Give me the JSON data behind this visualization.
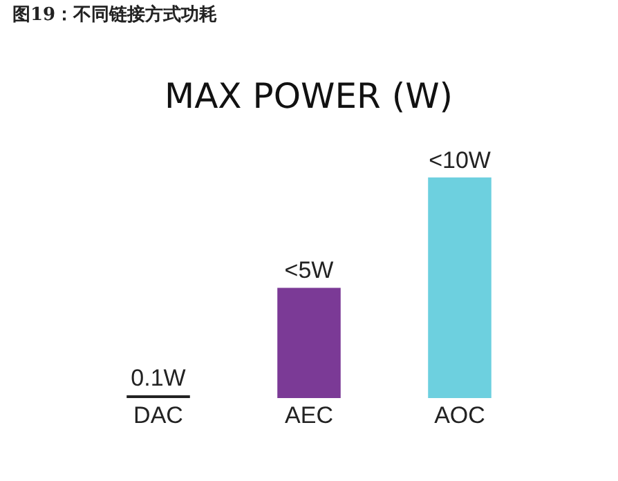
{
  "chart_data": {
    "type": "bar",
    "title": "图19：不同链接方式功耗",
    "subtitle": "MAX POWER (W)",
    "categories": [
      "DAC",
      "AEC",
      "AOC"
    ],
    "values": [
      0.1,
      5,
      10
    ],
    "colors": [
      "#222222",
      "#7b3a96",
      "#6dd0df"
    ],
    "value_labels": [
      "0.1W",
      "<5W",
      "<10W"
    ],
    "grid": false
  }
}
